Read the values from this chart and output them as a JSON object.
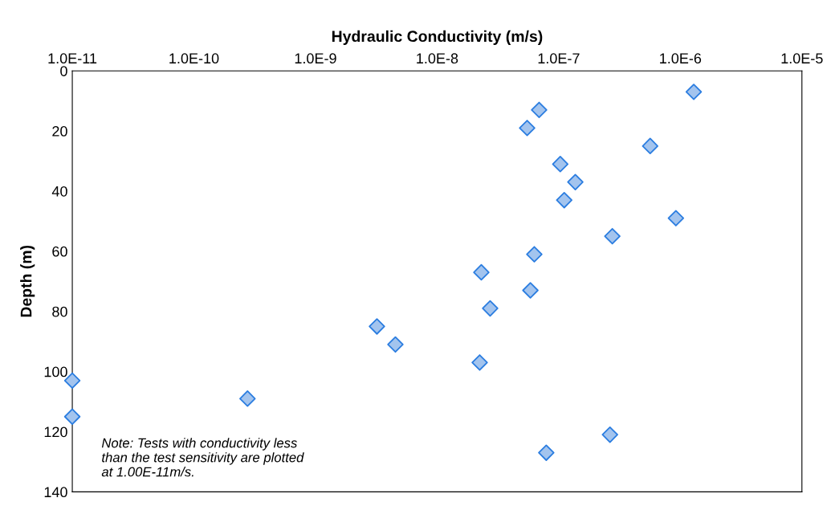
{
  "chart_data": {
    "type": "scatter",
    "xlabel": "Hydraulic Conductivity (m/s)",
    "ylabel": "Depth (m)",
    "log": "x",
    "xlim": [
      1e-11,
      1e-05
    ],
    "xticks": [
      {
        "value": 1e-11,
        "label": "1.0E-11"
      },
      {
        "value": 1e-10,
        "label": "1.0E-10"
      },
      {
        "value": 1e-09,
        "label": "1.0E-9"
      },
      {
        "value": 1e-08,
        "label": "1.0E-8"
      },
      {
        "value": 1e-07,
        "label": "1.0E-7"
      },
      {
        "value": 1e-06,
        "label": "1.0E-6"
      },
      {
        "value": 1e-05,
        "label": "1.0E-5"
      }
    ],
    "ylim": [
      140,
      0
    ],
    "yticks": [
      0,
      20,
      40,
      60,
      80,
      100,
      120,
      140
    ],
    "grid": false,
    "legend": false,
    "marker": "diamond",
    "series": [
      {
        "color": "#a3c4ee",
        "x": [
          1.29e-06,
          6.9e-08,
          5.5e-08,
          5.65e-07,
          1.03e-07,
          1.37e-07,
          1.11e-07,
          9.2e-07,
          2.76e-07,
          6.3e-08,
          2.31e-08,
          5.85e-08,
          2.73e-08,
          3.2e-09,
          4.54e-09,
          2.24e-08,
          1e-11,
          2.76e-10,
          1e-11,
          2.64e-07,
          7.9e-08
        ],
        "values": [
          7,
          13,
          19,
          25,
          31,
          37,
          43,
          49,
          55,
          61,
          67,
          73,
          79,
          85,
          91,
          97,
          103,
          109,
          115,
          121,
          127
        ]
      }
    ],
    "annotations": [
      "Note: Tests with conductivity less\nthan the test sensitivity are plotted\nat 1.00E-11m/s."
    ]
  }
}
